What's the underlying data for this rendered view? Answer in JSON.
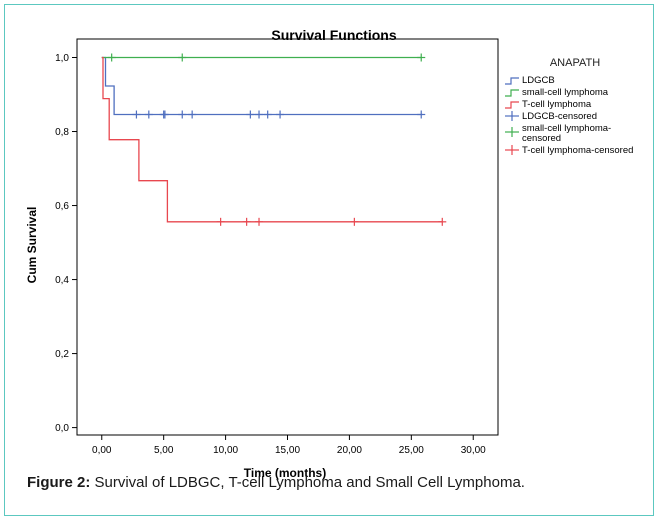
{
  "chart_data": {
    "type": "line",
    "title": "Survival Functions",
    "xlabel": "Time (months)",
    "ylabel": "Cum Survival",
    "xlim": [
      -2,
      32
    ],
    "ylim": [
      -0.02,
      1.05
    ],
    "x_ticks": [
      0,
      5,
      10,
      15,
      20,
      25,
      30
    ],
    "x_tick_labels": [
      "0,00",
      "5,00",
      "10,00",
      "15,00",
      "20,00",
      "25,00",
      "30,00"
    ],
    "y_ticks": [
      0,
      0.2,
      0.4,
      0.6,
      0.8,
      1.0
    ],
    "y_tick_labels": [
      "0,0",
      "0,2",
      "0,4",
      "0,6",
      "0,8",
      "1,0"
    ],
    "legend_title": "ANAPATH",
    "legend_position": "right",
    "series": [
      {
        "name": "LDGCB",
        "color": "#4f6fbf",
        "step_x": [
          0,
          0.3,
          0.3,
          1.0,
          1.0,
          25.9
        ],
        "step_y": [
          1.0,
          1.0,
          0.923,
          0.923,
          0.846,
          0.846
        ],
        "censored_name": "LDGCB-censored",
        "censored_x": [
          2.8,
          3.8,
          5.0,
          5.1,
          6.5,
          7.3,
          12.0,
          12.7,
          13.4,
          14.4,
          25.8
        ],
        "censored_y": [
          0.846,
          0.846,
          0.846,
          0.846,
          0.846,
          0.846,
          0.846,
          0.846,
          0.846,
          0.846,
          0.846
        ]
      },
      {
        "name": "small-cell lymphoma",
        "color": "#3faf4f",
        "step_x": [
          0,
          25.8
        ],
        "step_y": [
          1.0,
          1.0
        ],
        "censored_name": "small-cell lymphoma-censored",
        "censored_x": [
          0.8,
          6.5,
          25.8
        ],
        "censored_y": [
          1.0,
          1.0,
          1.0
        ]
      },
      {
        "name": "T-cell lymphoma",
        "color": "#e8474f",
        "step_x": [
          0,
          0.1,
          0.1,
          0.6,
          0.6,
          3.0,
          3.0,
          5.3,
          5.3,
          27.5
        ],
        "step_y": [
          1.0,
          1.0,
          0.889,
          0.889,
          0.778,
          0.778,
          0.667,
          0.667,
          0.556,
          0.556
        ],
        "censored_name": "T-cell lymphoma-censored",
        "censored_x": [
          9.6,
          11.7,
          12.7,
          20.4,
          27.5
        ],
        "censored_y": [
          0.556,
          0.556,
          0.556,
          0.556,
          0.556
        ]
      }
    ]
  },
  "caption": {
    "label": "Figure 2:",
    "text": " Survival of LDBGC, T-cell Lymphoma and Small Cell Lymphoma."
  }
}
